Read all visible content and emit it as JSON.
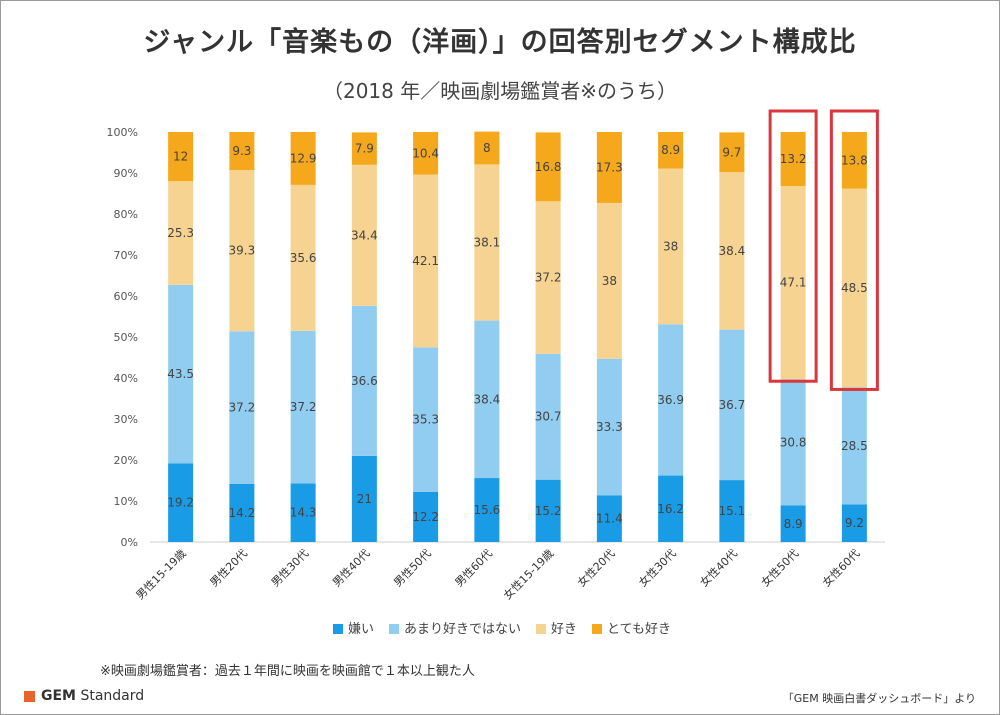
{
  "title": "ジャンル「音楽もの（洋画）」の回答別セグメント構成比",
  "subtitle": "（2018 年／映画劇場鑑賞者※のうち）",
  "note": "※映画劇場鑑賞者：過去１年間に映画を映画館で１本以上観た人",
  "logo": {
    "text_bold": "GEM",
    "text": "Standard",
    "color": "#e8632b"
  },
  "source": "「GEM 映画白書ダッシュボード」より",
  "highlight_color": "#d9363e",
  "chart_data": {
    "type": "bar",
    "stacked": true,
    "percent": true,
    "categories": [
      "男性15-19歳",
      "男性20代",
      "男性30代",
      "男性40代",
      "男性50代",
      "男性60代",
      "女性15-19歳",
      "女性20代",
      "女性30代",
      "女性40代",
      "女性50代",
      "女性60代"
    ],
    "series": [
      {
        "name": "嫌い",
        "color": "#1a9be6",
        "values": [
          19.2,
          14.2,
          14.3,
          21,
          12.2,
          15.6,
          15.2,
          11.4,
          16.2,
          15.1,
          8.9,
          9.2
        ]
      },
      {
        "name": "あまり好きではない",
        "color": "#90cdf0",
        "values": [
          43.5,
          37.2,
          37.2,
          36.6,
          35.3,
          38.4,
          30.7,
          33.3,
          36.9,
          36.7,
          30.8,
          28.5
        ]
      },
      {
        "name": "好き",
        "color": "#f7d392",
        "values": [
          25.3,
          39.3,
          35.6,
          34.4,
          42.1,
          38.1,
          37.2,
          38,
          38,
          38.4,
          47.1,
          48.5
        ]
      },
      {
        "name": "とても好き",
        "color": "#f5a81c",
        "values": [
          12,
          9.3,
          12.9,
          7.9,
          10.4,
          8,
          16.8,
          17.3,
          8.9,
          9.7,
          13.2,
          13.8
        ]
      }
    ],
    "ylim": [
      0,
      100
    ],
    "yticks": [
      "0%",
      "10%",
      "20%",
      "30%",
      "40%",
      "50%",
      "60%",
      "70%",
      "80%",
      "90%",
      "100%"
    ],
    "highlighted_categories": [
      "女性50代",
      "女性60代"
    ],
    "highlighted_series": [
      "好き",
      "とても好き"
    ],
    "grid": false,
    "legend_position": "bottom"
  }
}
